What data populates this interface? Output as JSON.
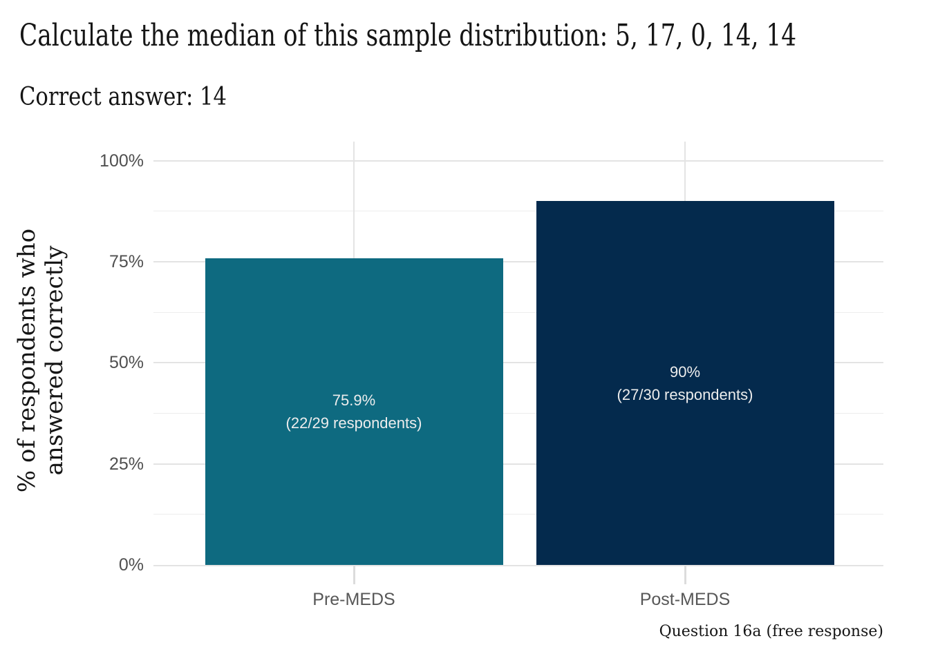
{
  "header": {
    "title": "Calculate the median of this sample distribution: 5, 17, 0, 14, 14",
    "subtitle": "Correct answer: 14"
  },
  "chart_data": {
    "type": "bar",
    "categories": [
      "Pre-MEDS",
      "Post-MEDS"
    ],
    "values": [
      75.9,
      90
    ],
    "bar_labels": [
      {
        "line1": "75.9%",
        "line2": "(22/29 respondents)"
      },
      {
        "line1": "90%",
        "line2": "(27/30 respondents)"
      }
    ],
    "bar_colors": [
      "#0E6A80",
      "#042A4D"
    ],
    "title": "Calculate the median of this sample distribution: 5, 17, 0, 14, 14",
    "subtitle": "Correct answer: 14",
    "xlabel": "",
    "ylabel": "% of respondents who answered correctly",
    "ylabel_lines": [
      "% of respondents who",
      "answered correctly"
    ],
    "ylim": [
      0,
      100
    ],
    "yticks": [
      0,
      25,
      50,
      75,
      100
    ],
    "ytick_labels": [
      "0%",
      "25%",
      "50%",
      "75%",
      "100%"
    ],
    "y_minor_ticks": [
      12.5,
      37.5,
      62.5,
      87.5
    ],
    "grid": "horizontal major+minor gridlines, vertical gridline at each category, no legend",
    "legend": "none",
    "caption": "Question 16a (free response)"
  },
  "colors": {
    "bar_pre": "#0E6A80",
    "bar_post": "#042A4D",
    "grid_major": "#E3E3E3",
    "grid_minor": "#EDEDED",
    "axis_text": "#4F4F4F",
    "bar_label_text": "#EDEDED",
    "title_text": "#151515",
    "background": "#FFFFFF"
  }
}
